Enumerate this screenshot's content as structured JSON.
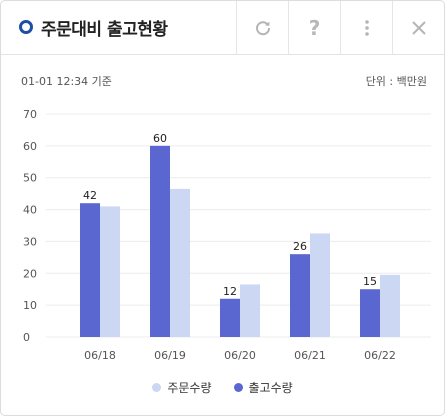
{
  "header": {
    "title": "주문대비 출고현황",
    "refresh_icon": "refresh-icon",
    "help_label": "?",
    "more_icon": "more-vertical-icon",
    "close_icon": "close-icon"
  },
  "meta": {
    "timestamp": "01-01 12:34 기준",
    "unit": "단위 : 백만원"
  },
  "colors": {
    "accent": "#1e4fa3",
    "order": "#ccd7f4",
    "shipment": "#5b67d0",
    "grid": "#ececec",
    "axis_text": "#555555"
  },
  "chart_data": {
    "type": "bar",
    "categories": [
      "06/18",
      "06/19",
      "06/20",
      "06/21",
      "06/22"
    ],
    "series": [
      {
        "name": "주문수량",
        "values": [
          41,
          46.5,
          16.5,
          32.5,
          19.5
        ]
      },
      {
        "name": "출고수량",
        "values": [
          42,
          60,
          12,
          26,
          15
        ],
        "labels": [
          "42",
          "60",
          "12",
          "26",
          "15"
        ]
      }
    ],
    "y_ticks": [
      "0",
      "10",
      "20",
      "30",
      "40",
      "50",
      "60",
      "70"
    ],
    "ylim": [
      0,
      70
    ],
    "grid": true,
    "legend": "bottom"
  }
}
